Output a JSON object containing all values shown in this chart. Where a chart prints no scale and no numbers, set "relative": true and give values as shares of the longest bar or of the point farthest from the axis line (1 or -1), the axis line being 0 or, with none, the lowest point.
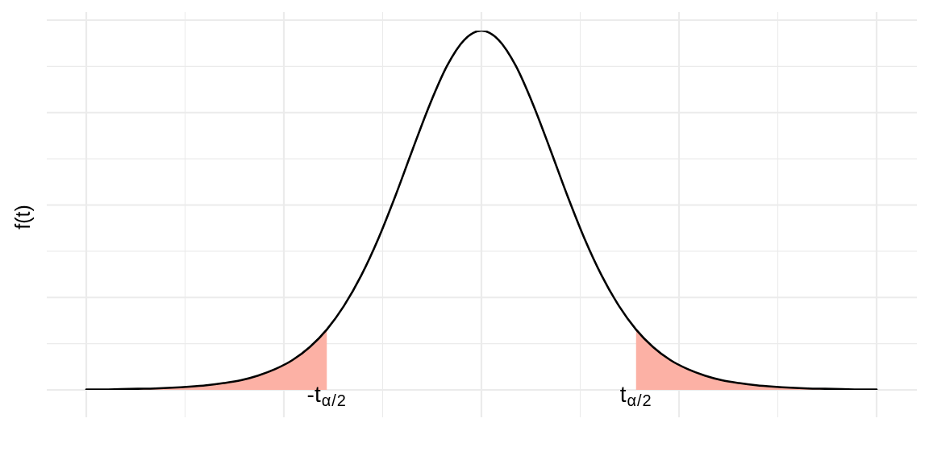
{
  "chart_data": {
    "type": "line",
    "relative": true,
    "ylabel": "f(t)",
    "categories": [
      null,
      null,
      null,
      null,
      null,
      null,
      null,
      null,
      null,
      null,
      null,
      null,
      null,
      null,
      null,
      null,
      null,
      null,
      null,
      null,
      null,
      null,
      null,
      null,
      null,
      null,
      null,
      null,
      null,
      null,
      null,
      null,
      null,
      null,
      null,
      null,
      null,
      null,
      null,
      null,
      null,
      null,
      null,
      null,
      null,
      null,
      null
    ],
    "series": [
      {
        "type": "area",
        "color": "#fcb1a5",
        "values": [
          0.001,
          0.001,
          0.002,
          0.003,
          0.004,
          0.006,
          0.009,
          0.013,
          0.019,
          0.027,
          0.04,
          0.058,
          0.083,
          0.119,
          0.168,
          null,
          null,
          null,
          null,
          null,
          null,
          null,
          null,
          null,
          null,
          null,
          null,
          null,
          null,
          null,
          null,
          null,
          0.168,
          0.119,
          0.083,
          0.058,
          0.04,
          0.027,
          0.019,
          0.013,
          0.009,
          0.006,
          0.004,
          0.003,
          0.002,
          0.001,
          0.001
        ]
      },
      {
        "color": "#000000",
        "values": [
          0.001,
          0.001,
          0.002,
          0.003,
          0.004,
          0.006,
          0.009,
          0.013,
          0.019,
          0.027,
          0.04,
          0.058,
          0.083,
          0.119,
          0.168,
          0.234,
          0.318,
          0.421,
          0.541,
          0.67,
          0.795,
          0.902,
          0.974,
          1,
          0.974,
          0.902,
          0.795,
          0.67,
          0.541,
          0.421,
          0.318,
          0.234,
          0.168,
          0.119,
          0.083,
          0.058,
          0.04,
          0.027,
          0.019,
          0.013,
          0.009,
          0.006,
          0.004,
          0.003,
          0.002,
          0.001,
          0.001
        ]
      }
    ],
    "annotations": [
      "-t$_{α/2}$",
      "t$_{α/2}$"
    ],
    "grid": true,
    "marker": "none",
    "line_style": "solid"
  }
}
